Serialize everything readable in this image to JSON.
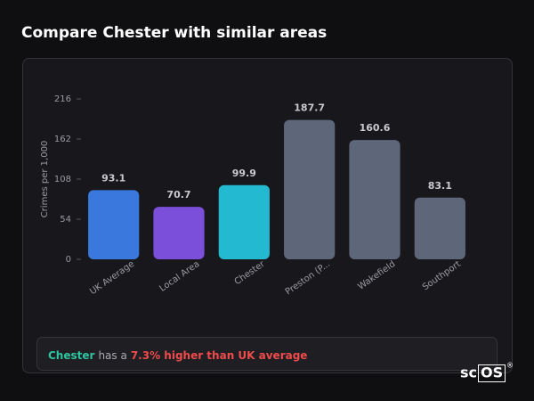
{
  "chart_data": {
    "type": "bar",
    "title": "Compare Chester with similar areas",
    "ylabel": "Crimes per 1,000",
    "categories": [
      "UK Average",
      "Local Area",
      "Chester",
      "Preston (P...",
      "Wakefield",
      "Southport"
    ],
    "values": [
      93.1,
      70.7,
      99.9,
      187.7,
      160.6,
      83.1
    ],
    "colors": [
      "#3a78dd",
      "#7b4fd9",
      "#22b9d1",
      "#5d6779",
      "#5d6779",
      "#5d6779"
    ],
    "ylim": [
      0,
      216
    ],
    "yticks": [
      0,
      54,
      108,
      162,
      216
    ],
    "grid": false
  },
  "footer": {
    "area": "Chester",
    "text": "has a",
    "highlight": "7.3% higher than UK average"
  },
  "logo": {
    "prefix": "sc",
    "suffix": "OS",
    "mark": "®"
  }
}
